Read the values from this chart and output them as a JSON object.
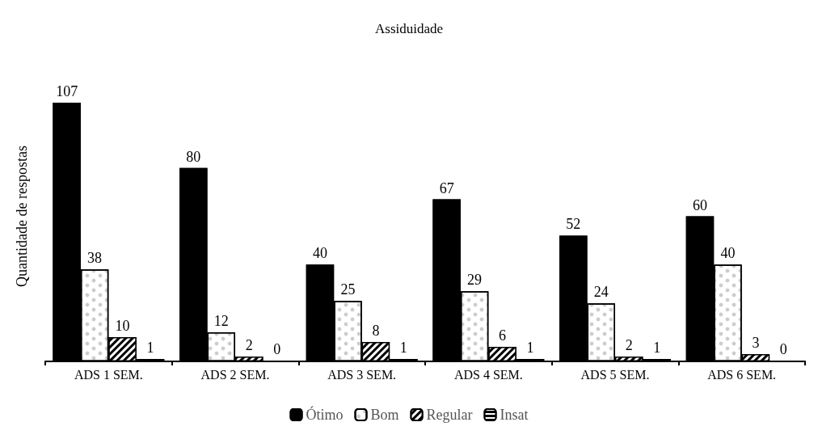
{
  "chart_data": {
    "type": "bar",
    "title": "Assiduidade",
    "ylabel": "Quantidade de respostas",
    "categories": [
      "ADS 1 SEM.",
      "ADS 2 SEM.",
      "ADS 3 SEM.",
      "ADS 4 SEM.",
      "ADS 5 SEM.",
      "ADS 6 SEM."
    ],
    "series": [
      {
        "name": "Ótimo",
        "color": "#000000",
        "values": [
          107,
          80,
          40,
          67,
          52,
          60
        ]
      },
      {
        "name": "Bom",
        "color": "#ffffff",
        "values": [
          38,
          12,
          25,
          29,
          24,
          40
        ]
      },
      {
        "name": "Regular",
        "color": "#000000",
        "values": [
          10,
          2,
          8,
          6,
          2,
          3
        ]
      },
      {
        "name": "Insat",
        "color": "#000000",
        "values": [
          1,
          0,
          1,
          1,
          1,
          0
        ]
      }
    ],
    "data_labels": true,
    "legend": "bottom",
    "grid": false,
    "tick_labels": "x"
  }
}
